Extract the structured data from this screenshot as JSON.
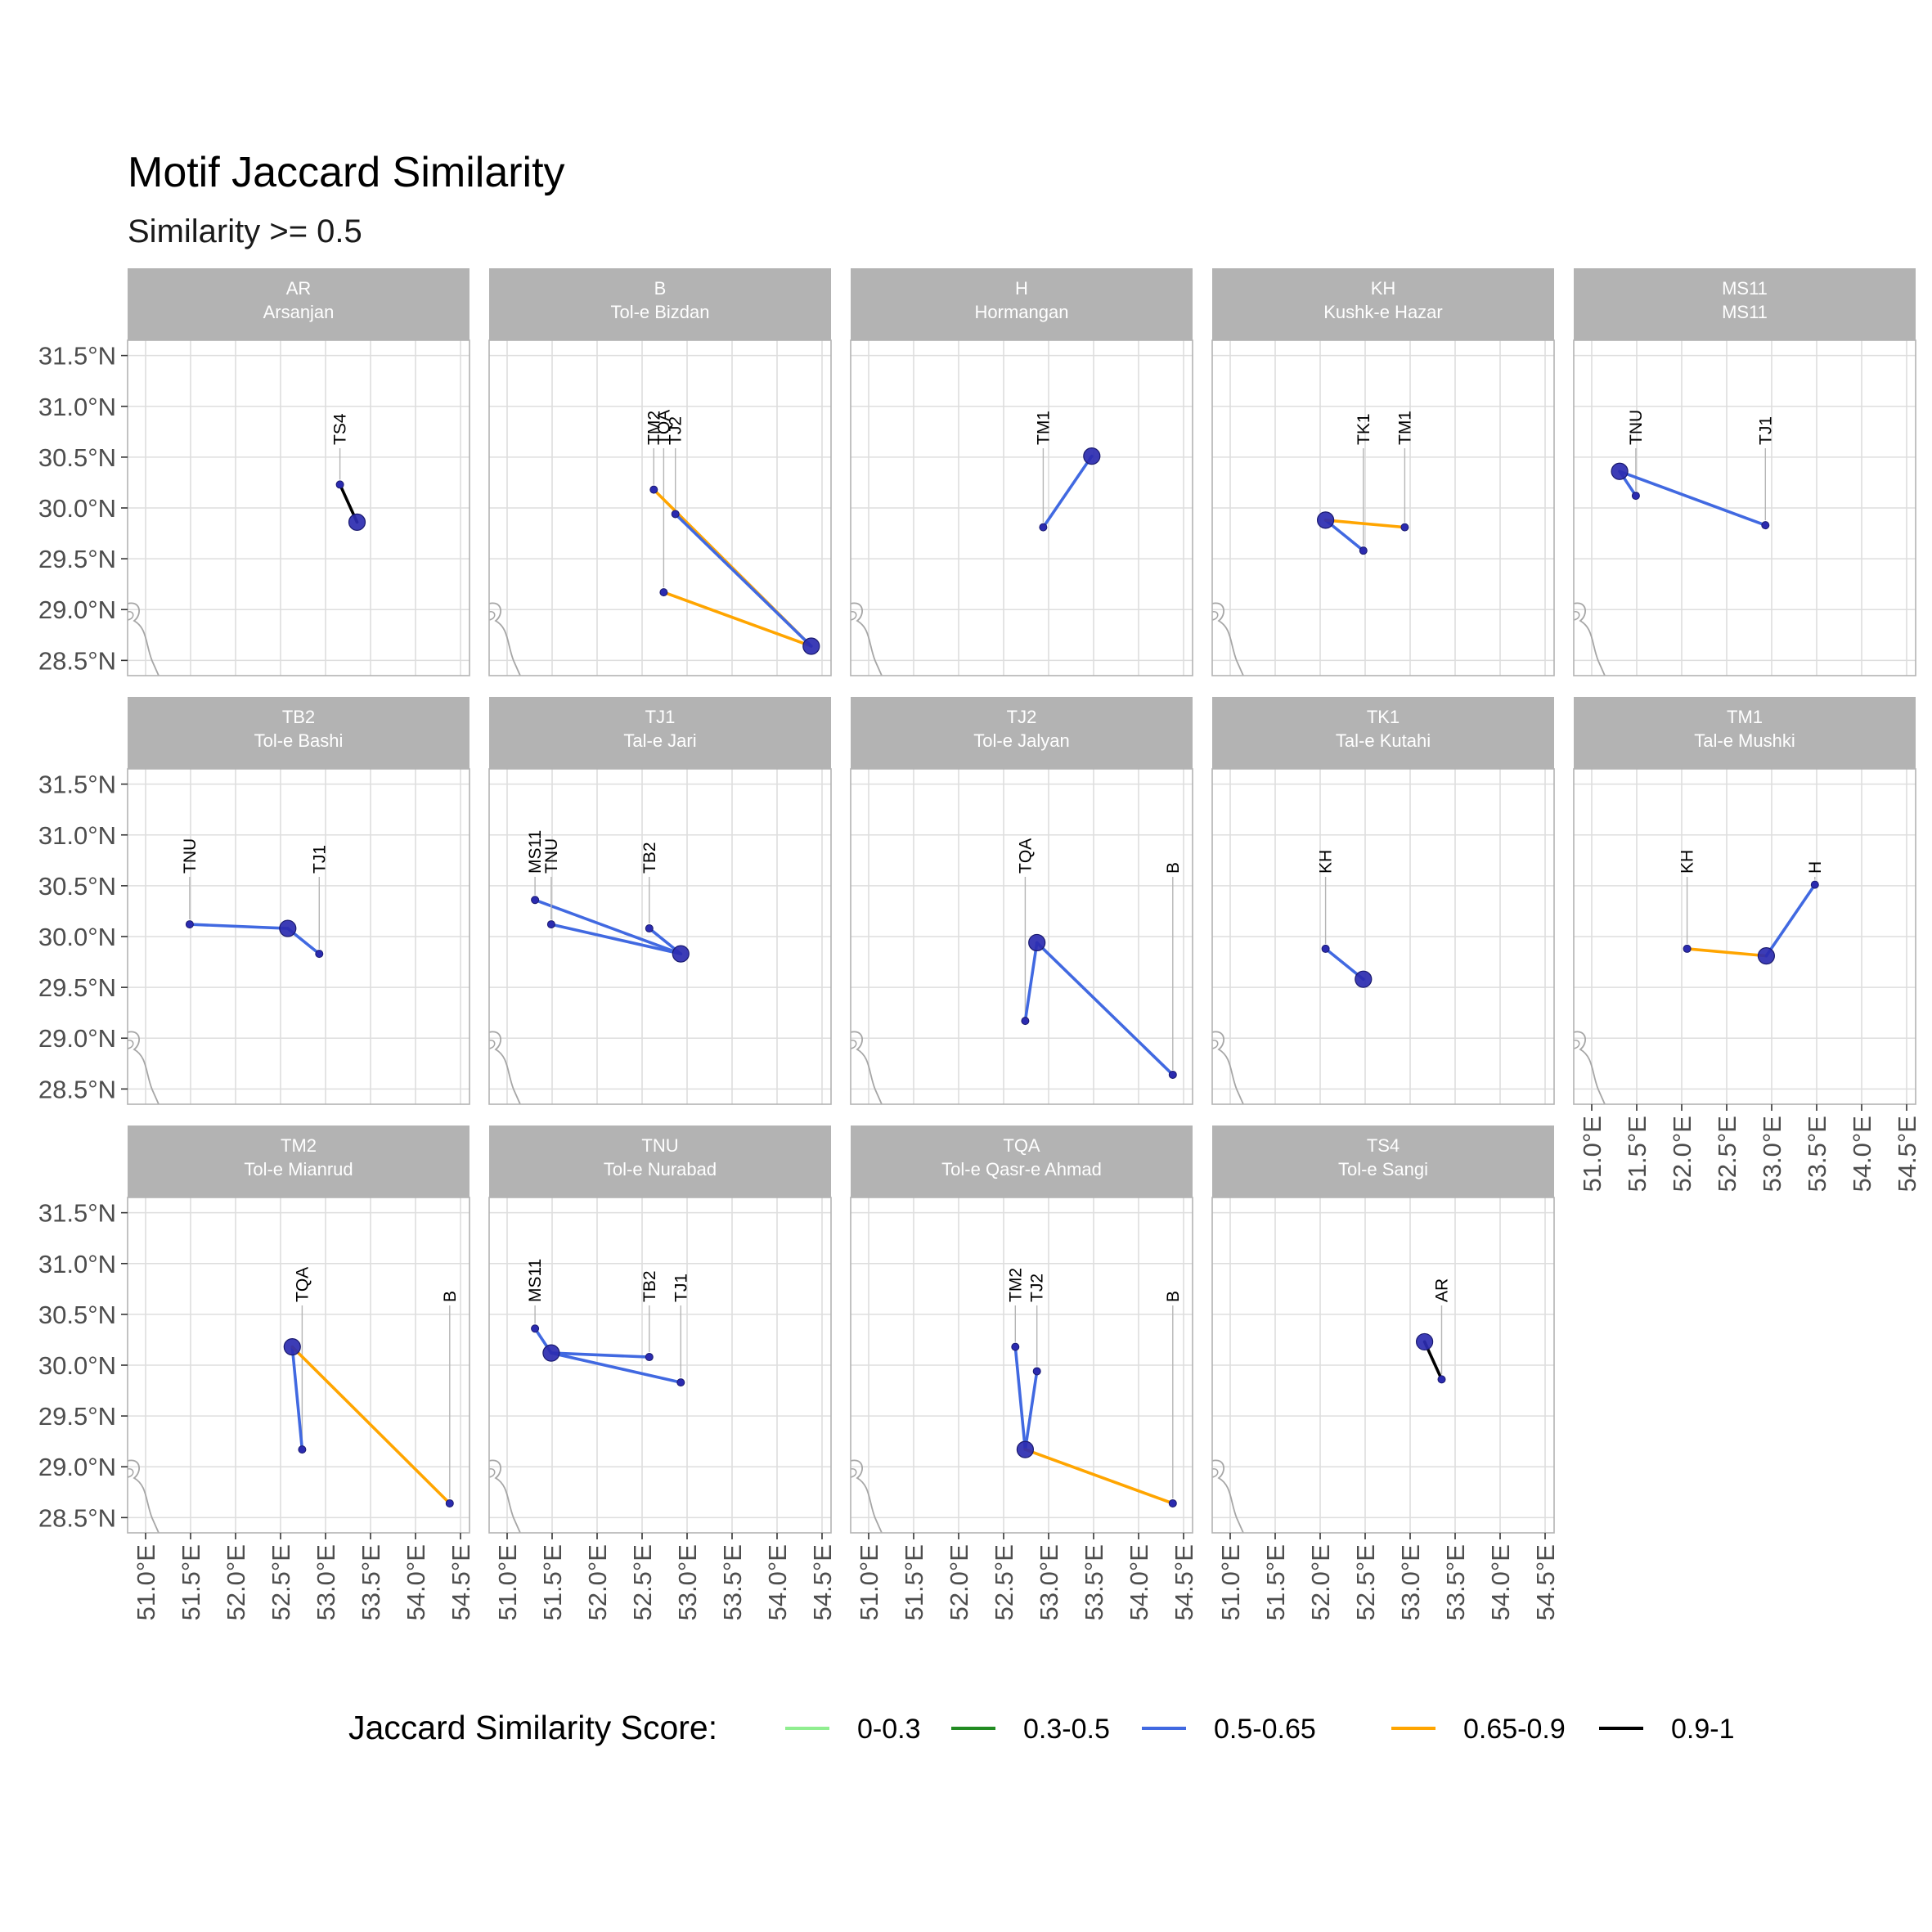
{
  "title": "Motif Jaccard Similarity",
  "subtitle": "Similarity >= 0.5",
  "chart_data": {
    "type": "line",
    "title": "Motif Jaccard Similarity",
    "subtitle": "Similarity >= 0.5",
    "x_ticks": [
      "51.0°E",
      "51.5°E",
      "52.0°E",
      "52.5°E",
      "53.0°E",
      "53.5°E",
      "54.0°E",
      "54.5°E"
    ],
    "y_ticks": [
      "31.5°N",
      "31.0°N",
      "30.5°N",
      "30.0°N",
      "29.5°N",
      "29.0°N",
      "28.5°N"
    ],
    "x_tick_values": [
      51.0,
      51.5,
      52.0,
      52.5,
      53.0,
      53.5,
      54.0,
      54.5
    ],
    "y_tick_values": [
      31.5,
      31.0,
      30.5,
      30.0,
      29.5,
      29.0,
      28.5
    ],
    "xlim": [
      50.8,
      54.6
    ],
    "ylim": [
      28.35,
      31.65
    ],
    "grid": true,
    "legend": {
      "title": "Jaccard Similarity Score:",
      "position": "bottom",
      "items": [
        {
          "label": "0-0.3",
          "color": "#90ee90"
        },
        {
          "label": "0.3-0.5",
          "color": "#228b22"
        },
        {
          "label": "0.5-0.65",
          "color": "#4169e1"
        },
        {
          "label": "0.65-0.9",
          "color": "#ffa500"
        },
        {
          "label": "0.9-1",
          "color": "#000000"
        }
      ]
    },
    "sites": {
      "AR": [
        53.35,
        29.86
      ],
      "B": [
        54.38,
        28.64
      ],
      "H": [
        53.48,
        30.51
      ],
      "KH": [
        52.06,
        29.88
      ],
      "MS11": [
        51.31,
        30.36
      ],
      "TB2": [
        52.58,
        30.08
      ],
      "TJ1": [
        52.93,
        29.83
      ],
      "TJ2": [
        52.87,
        29.94
      ],
      "TK1": [
        52.48,
        29.58
      ],
      "TM1": [
        52.94,
        29.81
      ],
      "TM2": [
        52.63,
        30.18
      ],
      "TNU": [
        51.49,
        30.12
      ],
      "TQA": [
        52.74,
        29.17
      ],
      "TS4": [
        53.16,
        30.23
      ]
    },
    "panels": [
      {
        "code": "AR",
        "name": "Arsanjan",
        "links": [
          {
            "site": "TS4",
            "category": "0.9-1"
          }
        ]
      },
      {
        "code": "B",
        "name": "Tol-e Bizdan",
        "links": [
          {
            "site": "TQA",
            "category": "0.65-0.9"
          },
          {
            "site": "TM2",
            "category": "0.65-0.9"
          },
          {
            "site": "TJ2",
            "category": "0.5-0.65"
          }
        ]
      },
      {
        "code": "H",
        "name": "Hormangan",
        "links": [
          {
            "site": "TM1",
            "category": "0.5-0.65"
          }
        ]
      },
      {
        "code": "KH",
        "name": "Kushk-e Hazar",
        "links": [
          {
            "site": "TK1",
            "category": "0.5-0.65"
          },
          {
            "site": "TM1",
            "category": "0.65-0.9"
          }
        ]
      },
      {
        "code": "MS11",
        "name": "MS11",
        "links": [
          {
            "site": "TNU",
            "category": "0.5-0.65"
          },
          {
            "site": "TJ1",
            "category": "0.5-0.65"
          }
        ]
      },
      {
        "code": "TB2",
        "name": "Tol-e Bashi",
        "links": [
          {
            "site": "TNU",
            "category": "0.5-0.65"
          },
          {
            "site": "TJ1",
            "category": "0.5-0.65"
          }
        ]
      },
      {
        "code": "TJ1",
        "name": "Tal-e Jari",
        "links": [
          {
            "site": "MS11",
            "category": "0.5-0.65"
          },
          {
            "site": "TNU",
            "category": "0.5-0.65"
          },
          {
            "site": "TB2",
            "category": "0.5-0.65"
          }
        ]
      },
      {
        "code": "TJ2",
        "name": "Tol-e Jalyan",
        "links": [
          {
            "site": "TQA",
            "category": "0.5-0.65"
          },
          {
            "site": "B",
            "category": "0.5-0.65"
          }
        ]
      },
      {
        "code": "TK1",
        "name": "Tal-e Kutahi",
        "links": [
          {
            "site": "KH",
            "category": "0.5-0.65"
          }
        ]
      },
      {
        "code": "TM1",
        "name": "Tal-e Mushki",
        "links": [
          {
            "site": "KH",
            "category": "0.65-0.9"
          },
          {
            "site": "H",
            "category": "0.5-0.65"
          }
        ]
      },
      {
        "code": "TM2",
        "name": "Tol-e Mianrud",
        "links": [
          {
            "site": "TQA",
            "category": "0.5-0.65"
          },
          {
            "site": "B",
            "category": "0.65-0.9"
          }
        ]
      },
      {
        "code": "TNU",
        "name": "Tol-e Nurabad",
        "links": [
          {
            "site": "MS11",
            "category": "0.5-0.65"
          },
          {
            "site": "TB2",
            "category": "0.5-0.65"
          },
          {
            "site": "TJ1",
            "category": "0.5-0.65"
          }
        ]
      },
      {
        "code": "TQA",
        "name": "Tol-e Qasr-e Ahmad",
        "links": [
          {
            "site": "TM2",
            "category": "0.5-0.65"
          },
          {
            "site": "TJ2",
            "category": "0.5-0.65"
          },
          {
            "site": "B",
            "category": "0.65-0.9"
          }
        ]
      },
      {
        "code": "TS4",
        "name": "Tol-e Sangi",
        "links": [
          {
            "site": "AR",
            "category": "0.9-1"
          }
        ]
      }
    ]
  }
}
